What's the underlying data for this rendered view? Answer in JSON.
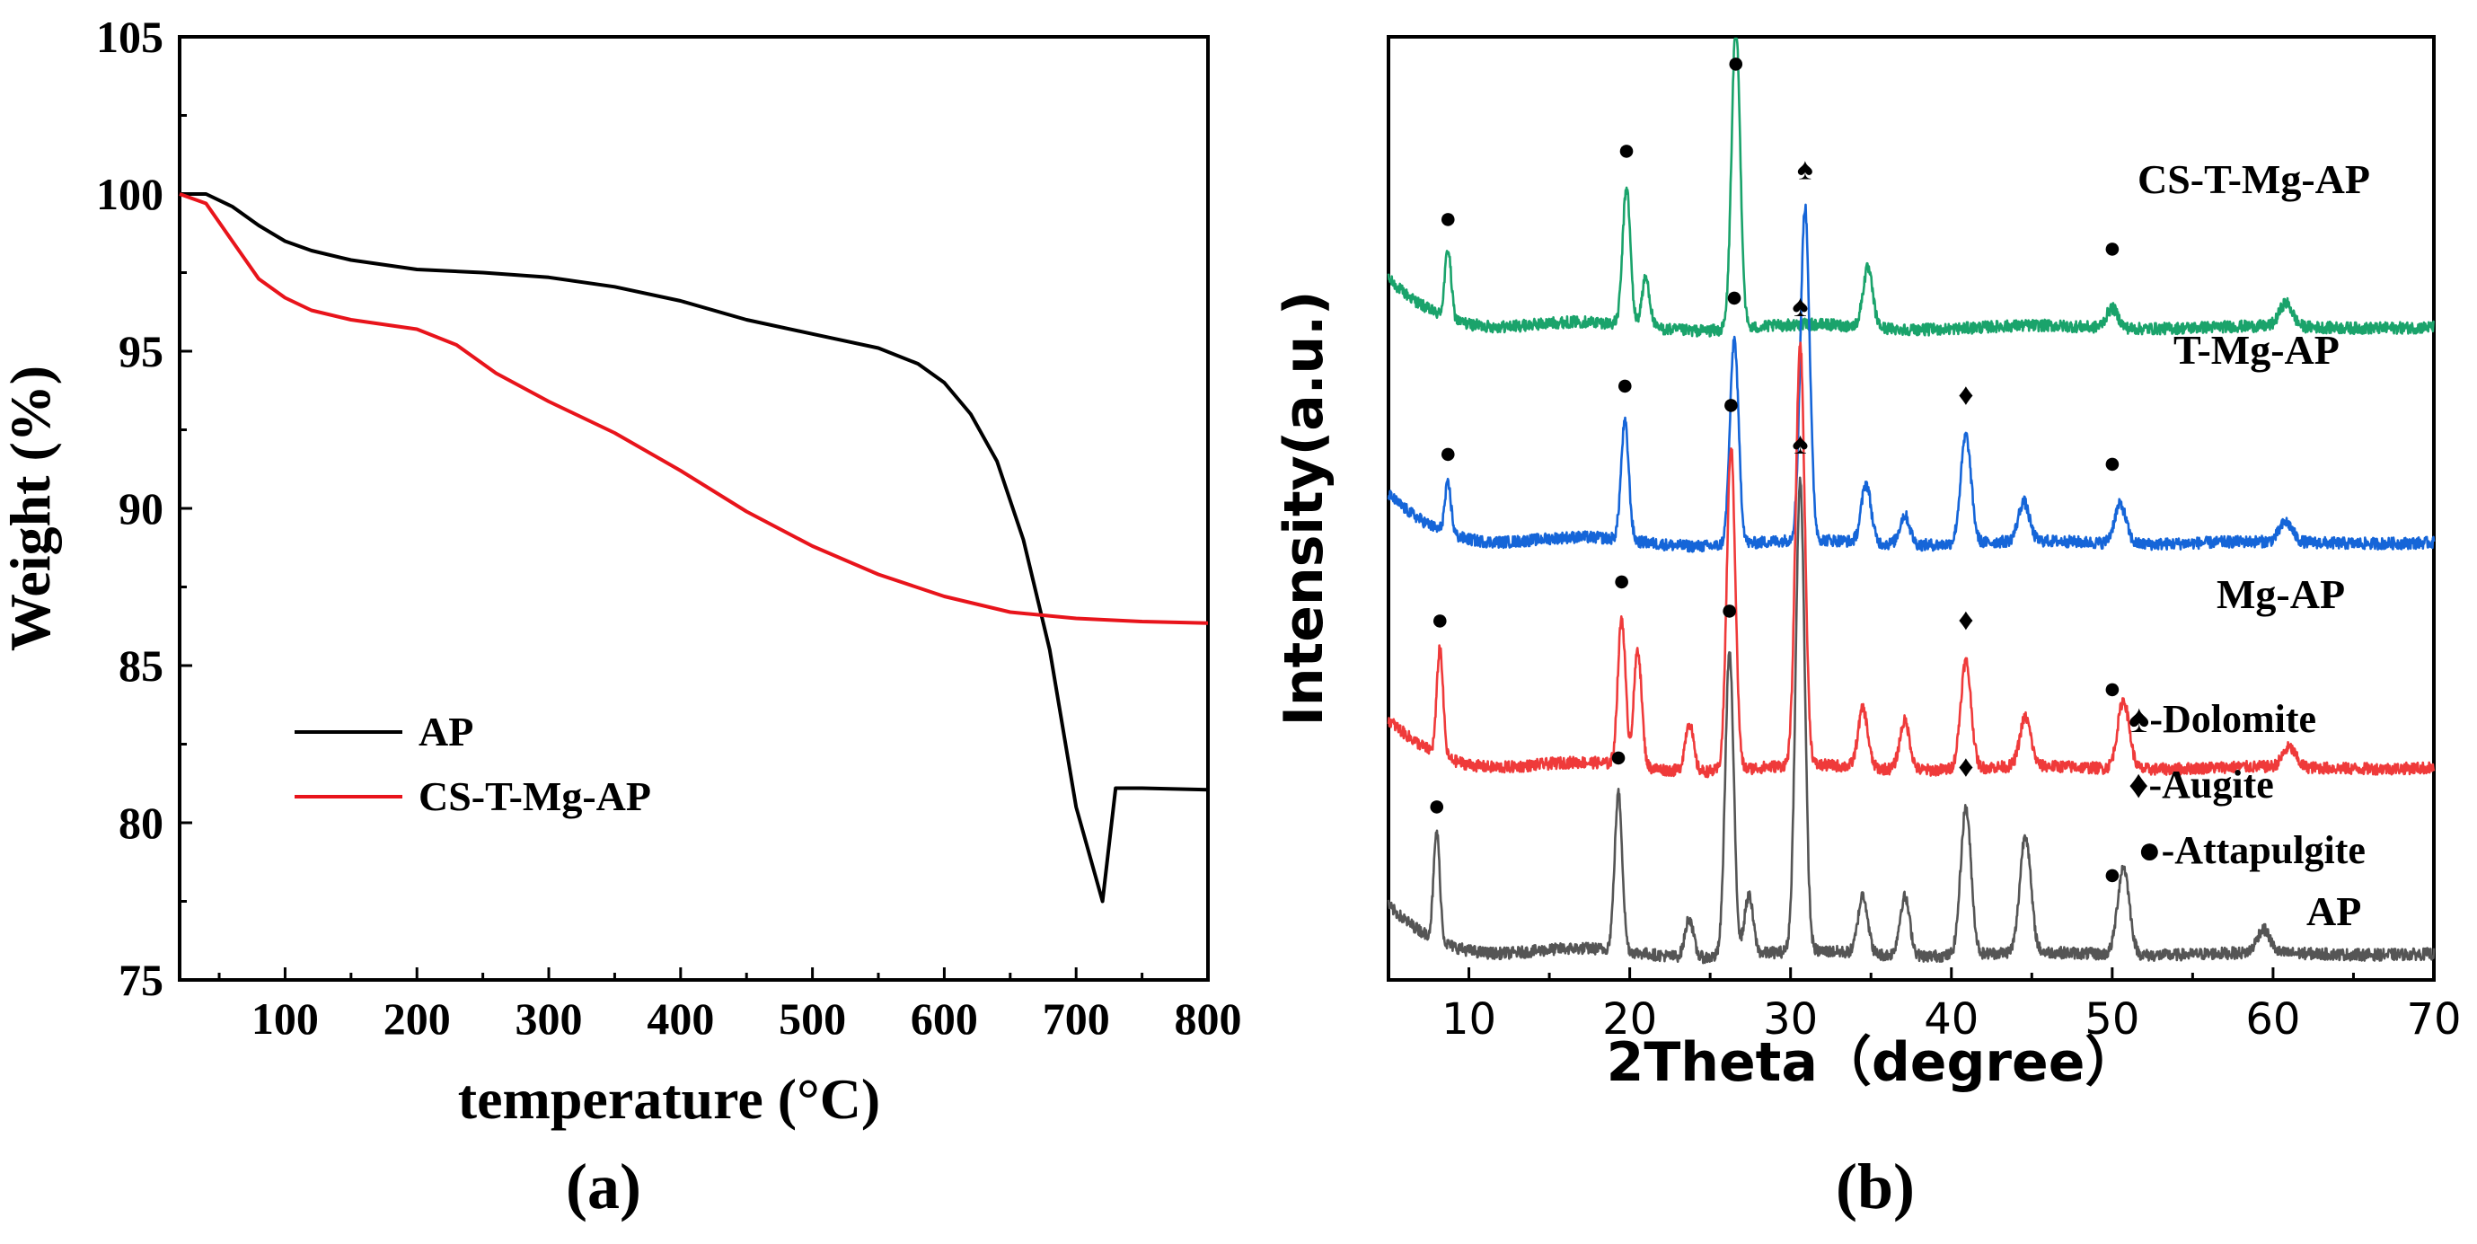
{
  "chart_data": [
    {
      "type": "line",
      "panel_label": "(a)",
      "xlabel": "temperature (°C)",
      "ylabel": "Weight (%)",
      "xlim": [
        20,
        800
      ],
      "ylim": [
        75,
        105
      ],
      "xticks": [
        100,
        200,
        300,
        400,
        500,
        600,
        700,
        800
      ],
      "yticks": [
        75,
        80,
        85,
        90,
        95,
        100,
        105
      ],
      "legend_position": "bottom-left",
      "series": [
        {
          "name": "AP",
          "color": "#000000",
          "points": [
            [
              20,
              100.0
            ],
            [
              40,
              100.0
            ],
            [
              60,
              99.6
            ],
            [
              80,
              99.0
            ],
            [
              100,
              98.5
            ],
            [
              120,
              98.2
            ],
            [
              150,
              97.9
            ],
            [
              200,
              97.6
            ],
            [
              250,
              97.5
            ],
            [
              300,
              97.35
            ],
            [
              350,
              97.05
            ],
            [
              400,
              96.6
            ],
            [
              450,
              96.0
            ],
            [
              500,
              95.55
            ],
            [
              550,
              95.1
            ],
            [
              580,
              94.6
            ],
            [
              600,
              94.0
            ],
            [
              620,
              93.0
            ],
            [
              640,
              91.5
            ],
            [
              660,
              89.0
            ],
            [
              680,
              85.5
            ],
            [
              700,
              80.5
            ],
            [
              720,
              77.5
            ],
            [
              730,
              81.1
            ],
            [
              750,
              81.1
            ],
            [
              800,
              81.05
            ]
          ]
        },
        {
          "name": "CS-T-Mg-AP",
          "color": "#e8141b",
          "points": [
            [
              20,
              100.0
            ],
            [
              40,
              99.7
            ],
            [
              60,
              98.5
            ],
            [
              80,
              97.3
            ],
            [
              100,
              96.7
            ],
            [
              120,
              96.3
            ],
            [
              150,
              96.0
            ],
            [
              200,
              95.7
            ],
            [
              230,
              95.2
            ],
            [
              260,
              94.3
            ],
            [
              300,
              93.4
            ],
            [
              350,
              92.4
            ],
            [
              400,
              91.2
            ],
            [
              450,
              89.9
            ],
            [
              500,
              88.8
            ],
            [
              550,
              87.9
            ],
            [
              600,
              87.2
            ],
            [
              650,
              86.7
            ],
            [
              700,
              86.5
            ],
            [
              750,
              86.4
            ],
            [
              800,
              86.35
            ]
          ]
        }
      ]
    },
    {
      "type": "line",
      "panel_label": "(b)",
      "xlabel": "2Theta（degree）",
      "ylabel": "Intensity(a.u.)",
      "xlim": [
        5,
        70
      ],
      "xticks": [
        10,
        20,
        30,
        40,
        50,
        60,
        70
      ],
      "series": [
        {
          "name": "CS-T-Mg-AP",
          "color": "#1aa36b",
          "baseline": 3.2,
          "peaks": [
            [
              8.7,
              0.35
            ],
            [
              19.8,
              0.7
            ],
            [
              21.0,
              0.25
            ],
            [
              26.6,
              1.55
            ],
            [
              34.8,
              0.3
            ],
            [
              50.0,
              0.1
            ],
            [
              60.8,
              0.12
            ]
          ],
          "markers": [
            {
              "x": 8.7,
              "symbol": "●"
            },
            {
              "x": 19.8,
              "symbol": "●"
            },
            {
              "x": 26.6,
              "symbol": "●"
            },
            {
              "x": 50.0,
              "symbol": "●"
            }
          ]
        },
        {
          "name": "T-Mg-AP",
          "color": "#1565d8",
          "baseline": 2.1,
          "peaks": [
            [
              8.7,
              0.25
            ],
            [
              19.7,
              0.6
            ],
            [
              26.5,
              1.05
            ],
            [
              30.9,
              1.7
            ],
            [
              34.7,
              0.3
            ],
            [
              37.1,
              0.15
            ],
            [
              40.9,
              0.55
            ],
            [
              44.5,
              0.2
            ],
            [
              50.5,
              0.2
            ],
            [
              60.8,
              0.1
            ]
          ],
          "markers": [
            {
              "x": 8.7,
              "symbol": "●"
            },
            {
              "x": 19.7,
              "symbol": "●"
            },
            {
              "x": 26.5,
              "symbol": "●"
            },
            {
              "x": 30.9,
              "symbol": "♠"
            },
            {
              "x": 40.9,
              "symbol": "♦"
            },
            {
              "x": 50.0,
              "symbol": "●"
            }
          ]
        },
        {
          "name": "Mg-AP",
          "color": "#ef3a3a",
          "baseline": 0.95,
          "peaks": [
            [
              8.2,
              0.55
            ],
            [
              19.5,
              0.75
            ],
            [
              20.5,
              0.6
            ],
            [
              23.7,
              0.25
            ],
            [
              26.3,
              1.65
            ],
            [
              30.6,
              2.15
            ],
            [
              34.5,
              0.3
            ],
            [
              37.1,
              0.25
            ],
            [
              40.9,
              0.55
            ],
            [
              44.6,
              0.25
            ],
            [
              50.7,
              0.35
            ],
            [
              61.0,
              0.1
            ]
          ],
          "markers": [
            {
              "x": 8.2,
              "symbol": "●"
            },
            {
              "x": 19.5,
              "symbol": "●"
            },
            {
              "x": 26.3,
              "symbol": "●"
            },
            {
              "x": 30.6,
              "symbol": "♠"
            },
            {
              "x": 40.9,
              "symbol": "♦"
            },
            {
              "x": 50.0,
              "symbol": "●"
            }
          ]
        },
        {
          "name": "AP",
          "color": "#555555",
          "baseline": 0.0,
          "peaks": [
            [
              8.0,
              0.55
            ],
            [
              19.3,
              0.8
            ],
            [
              23.7,
              0.2
            ],
            [
              26.2,
              1.55
            ],
            [
              27.4,
              0.3
            ],
            [
              30.6,
              2.4
            ],
            [
              34.5,
              0.3
            ],
            [
              37.1,
              0.3
            ],
            [
              40.9,
              0.75
            ],
            [
              44.6,
              0.6
            ],
            [
              50.7,
              0.45
            ],
            [
              59.4,
              0.12
            ]
          ],
          "markers": [
            {
              "x": 8.0,
              "symbol": "●"
            },
            {
              "x": 19.3,
              "symbol": "●"
            },
            {
              "x": 26.2,
              "symbol": "●"
            },
            {
              "x": 30.6,
              "symbol": "♠"
            },
            {
              "x": 40.9,
              "symbol": "♦"
            },
            {
              "x": 50.0,
              "symbol": "●"
            }
          ]
        }
      ],
      "phase_legend": [
        {
          "symbol": "♠",
          "text": "-Dolomite"
        },
        {
          "symbol": "♦",
          "text": "-Augite"
        },
        {
          "symbol": "●",
          "text": "-Attapulgite"
        }
      ]
    }
  ]
}
